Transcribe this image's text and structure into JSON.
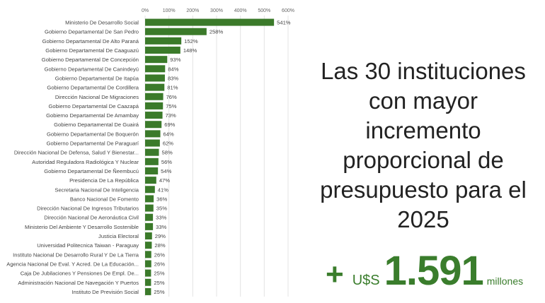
{
  "chart_data": {
    "type": "bar",
    "orientation": "horizontal",
    "categories": [
      "Ministerio De Desarrollo Social",
      "Gobierno Departamental De San Pedro",
      "Gobierno Departamental De Alto Paraná",
      "Gobierno Departamental De Caaguazú",
      "Gobierno Departamental De Concepción",
      "Gobierno Departamental De Canindeyú",
      "Gobierno Departamental De Itapúa",
      "Gobierno Departamental De Cordillera",
      "Dirección Nacional De Migraciones",
      "Gobierno Departamental De Caazapá",
      "Gobierno Departamental De Amambay",
      "Gobierno Departamental De Guairá",
      "Gobierno Departamental De Boquerón",
      "Gobierno Departamental De Paraguarí",
      "Dirección Nacional De Defensa, Salud Y Bienestar...",
      "Autoridad Reguladora Radiológica Y Nuclear",
      "Gobierno Departamental De Ñeembucú",
      "Presidencia De La República",
      "Secretaria Nacional De Inteligencia",
      "Banco Nacional De Fomento",
      "Dirección Nacional De Ingresos Tributarios",
      "Dirección Nacional De Aeronáutica Civil",
      "Ministerio Del Ambiente Y Desarrollo Sostenible",
      "Justicia Electoral",
      "Universidad Politecnica Taiwan - Paraguay",
      "Instituto Nacional De Desarrollo Rural Y De La Tierra",
      "Agencia Nacional De Eval. Y Acred. De La Educación...",
      "Caja De Jubilaciones Y Pensiones De Empl. De...",
      "Administración Nacional De Navegación Y Puertos",
      "Instituto De Previsión Social"
    ],
    "values": [
      541,
      258,
      152,
      148,
      93,
      84,
      83,
      81,
      76,
      75,
      73,
      69,
      64,
      62,
      58,
      56,
      54,
      47,
      41,
      36,
      35,
      33,
      33,
      29,
      28,
      26,
      26,
      25,
      25,
      25
    ],
    "value_labels": [
      "541%",
      "258%",
      "152%",
      "148%",
      "93%",
      "84%",
      "83%",
      "81%",
      "76%",
      "75%",
      "73%",
      "69%",
      "64%",
      "62%",
      "58%",
      "56%",
      "54%",
      "47%",
      "41%",
      "36%",
      "35%",
      "33%",
      "33%",
      "29%",
      "28%",
      "26%",
      "26%",
      "25%",
      "25%",
      "25%"
    ],
    "xticks": [
      0,
      100,
      200,
      300,
      400,
      500,
      600
    ],
    "xtick_labels": [
      "0%",
      "100%",
      "200%",
      "300%",
      "400%",
      "500%",
      "600%"
    ],
    "xlim": [
      0,
      600
    ],
    "grid": true,
    "bar_color": "#3b7a2a"
  },
  "title_lines": [
    "Las 30 instituciones",
    "con mayor",
    "incremento",
    "proporcional de",
    "presupuesto para el",
    "2025"
  ],
  "total": {
    "plus": "+",
    "currency": "U$S",
    "amount": "1.591",
    "unit": "millones",
    "color": "#3a7d2c"
  }
}
